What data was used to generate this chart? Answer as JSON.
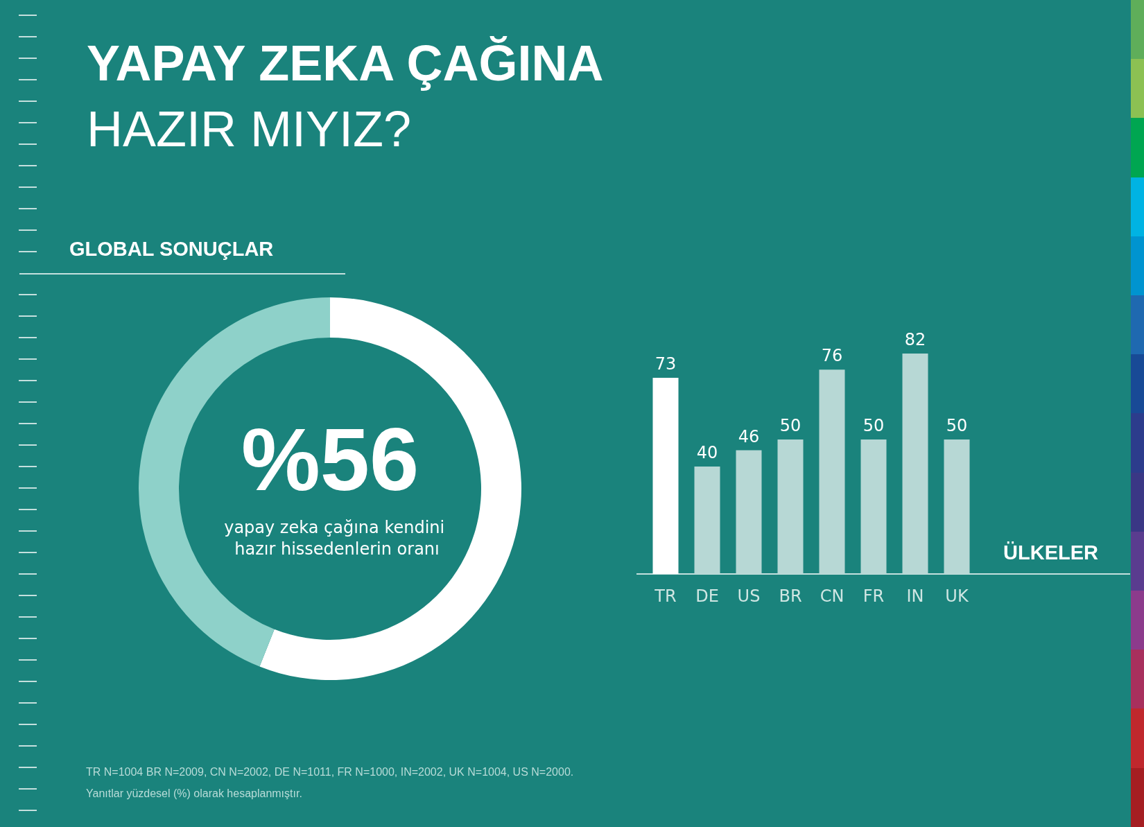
{
  "chart_data": [
    {
      "type": "donut",
      "title": "YAPAY ZEKA ÇAĞINA\nHAZIR MIYIZ?",
      "subtitle": "GLOBAL SONUÇLAR",
      "categories": [
        null,
        null
      ],
      "values": [
        56,
        44
      ],
      "colors": [
        "#ffffff",
        "#8ed1c9"
      ],
      "value_labels": [
        "%56",
        null
      ],
      "annotations": [
        "yapay zeka çağına kendini hazır hissedenlerin oranı",
        "TR N=1004 BR N=2009, CN N=2002, DE N=1011, FR N=1000, IN=2002, UK N=1004, US N=2000.",
        "Yanıtlar yüzdesel (%) olarak hesaplanmıştır."
      ]
    },
    {
      "type": "bar",
      "xlabel": "ÜLKELER",
      "categories": [
        "TR",
        "DE",
        "US",
        "BR",
        "CN",
        "FR",
        "IN",
        "UK"
      ],
      "values": [
        73,
        40,
        46,
        50,
        76,
        50,
        82,
        50
      ],
      "colors": [
        "#ffffff",
        "#b7d8d5",
        "#b7d8d5",
        "#b7d8d5",
        "#b7d8d5",
        "#b7d8d5",
        "#b7d8d5",
        "#b7d8d5"
      ],
      "data_labels": true
    }
  ]
}
